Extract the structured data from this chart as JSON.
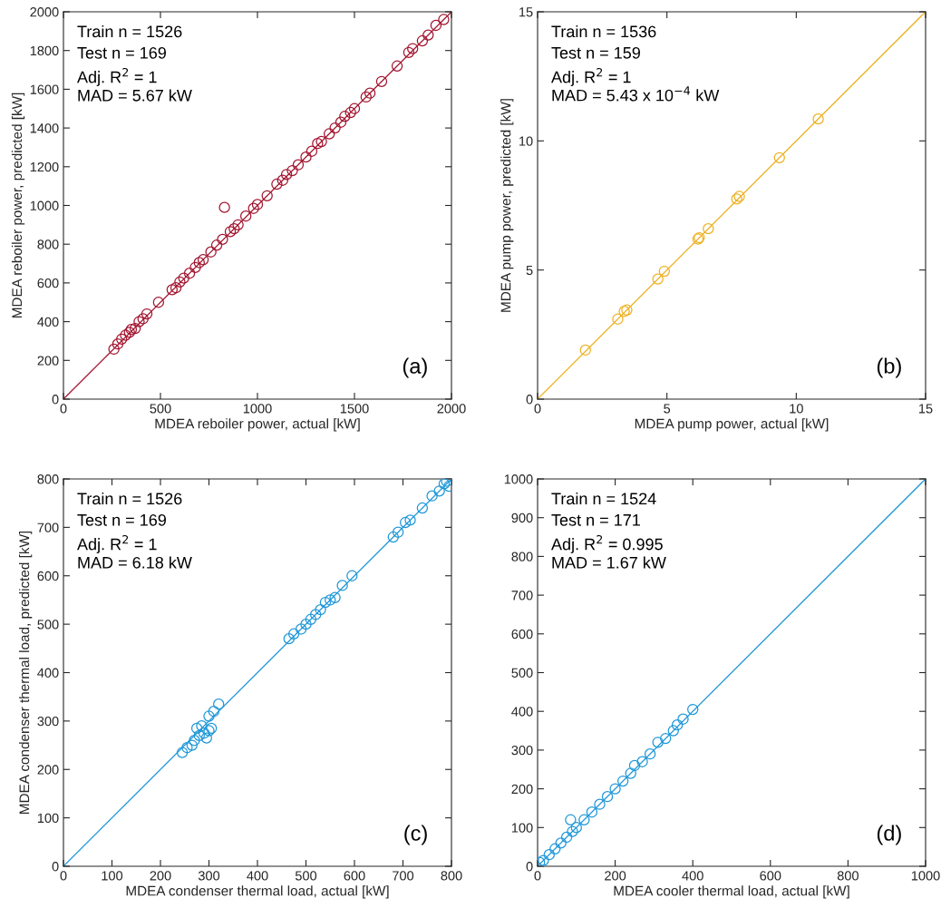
{
  "chart_data": [
    {
      "type": "scatter",
      "xlabel": "MDEA reboiler power, actual [kW]",
      "ylabel": "MDEA reboiler power, predicted [kW]",
      "annotations": [
        "Train n = 1526",
        "Test n = 169",
        "Adj. R$^{2}$ = 1",
        "MAD = 5.67 kW",
        "(a)"
      ],
      "xlim": [
        0,
        2000
      ],
      "ylim": [
        0,
        2000
      ],
      "xticks": [
        0,
        500,
        1000,
        1500,
        2000
      ],
      "yticks": [
        0,
        200,
        400,
        600,
        800,
        1000,
        1200,
        1400,
        1600,
        1800,
        2000
      ],
      "grid": false,
      "legend": false,
      "series": [
        {
          "marker": "circle",
          "color": "#a2142f",
          "x": [
            260,
            280,
            300,
            320,
            340,
            350,
            370,
            390,
            410,
            430,
            490,
            560,
            580,
            600,
            620,
            650,
            680,
            700,
            720,
            760,
            790,
            820,
            830,
            860,
            880,
            900,
            940,
            980,
            1000,
            1050,
            1100,
            1130,
            1150,
            1180,
            1210,
            1250,
            1280,
            1310,
            1330,
            1370,
            1400,
            1430,
            1450,
            1480,
            1500,
            1560,
            1580,
            1640,
            1720,
            1780,
            1800,
            1850,
            1880,
            1920,
            1960
          ],
          "values": [
            258,
            285,
            310,
            330,
            345,
            360,
            365,
            400,
            415,
            440,
            500,
            565,
            575,
            605,
            625,
            650,
            680,
            705,
            720,
            760,
            795,
            825,
            990,
            865,
            880,
            900,
            945,
            985,
            1005,
            1050,
            1110,
            1130,
            1160,
            1180,
            1210,
            1250,
            1280,
            1320,
            1330,
            1370,
            1400,
            1430,
            1460,
            1480,
            1500,
            1560,
            1580,
            1640,
            1720,
            1790,
            1810,
            1850,
            1880,
            1930,
            1960
          ]
        },
        {
          "type": "line",
          "line_style": "solid",
          "color": "#a2142f",
          "x": [
            0,
            2000
          ],
          "values": [
            0,
            2000
          ]
        }
      ]
    },
    {
      "type": "scatter",
      "xlabel": "MDEA pump power, actual [kW]",
      "ylabel": "MDEA pump power, predicted [kW]",
      "annotations": [
        "Train n = 1536",
        "Test n = 159",
        "Adj. R$^{2}$ = 1",
        "MAD = 5.43 x 10$^{−4}$ kW",
        "(b)"
      ],
      "xlim": [
        0,
        15
      ],
      "ylim": [
        0,
        15
      ],
      "xticks": [
        0,
        5,
        10,
        15
      ],
      "yticks": [
        0,
        5,
        10,
        15
      ],
      "grid": false,
      "legend": false,
      "series": [
        {
          "marker": "circle",
          "color": "#edb120",
          "x": [
            1.85,
            3.1,
            3.35,
            3.45,
            4.65,
            4.9,
            6.2,
            6.25,
            6.6,
            7.7,
            7.8,
            9.35,
            10.85
          ],
          "values": [
            1.9,
            3.1,
            3.4,
            3.45,
            4.65,
            4.95,
            6.2,
            6.25,
            6.6,
            7.75,
            7.85,
            9.35,
            10.85
          ]
        },
        {
          "type": "line",
          "line_style": "solid",
          "color": "#edb120",
          "x": [
            0,
            15
          ],
          "values": [
            0,
            15
          ]
        }
      ]
    },
    {
      "type": "scatter",
      "xlabel": "MDEA condenser thermal load, actual [kW]",
      "ylabel": "MDEA condenser thermal load, predicted [kW]",
      "annotations": [
        "Train n = 1526",
        "Test n = 169",
        "Adj. R$^{2}$ = 1",
        "MAD = 6.18 kW",
        "(c)"
      ],
      "xlim": [
        0,
        800
      ],
      "ylim": [
        0,
        800
      ],
      "xticks": [
        0,
        100,
        200,
        300,
        400,
        500,
        600,
        700,
        800
      ],
      "yticks": [
        0,
        100,
        200,
        300,
        400,
        500,
        600,
        700,
        800
      ],
      "grid": false,
      "legend": false,
      "series": [
        {
          "marker": "circle",
          "color": "#1e97d8",
          "x": [
            245,
            255,
            265,
            270,
            275,
            280,
            285,
            290,
            295,
            300,
            300,
            305,
            310,
            320,
            465,
            475,
            490,
            500,
            510,
            520,
            530,
            540,
            550,
            560,
            575,
            595,
            680,
            690,
            705,
            715,
            740,
            760,
            775,
            785,
            790,
            795
          ],
          "values": [
            235,
            245,
            250,
            260,
            285,
            270,
            290,
            275,
            265,
            280,
            310,
            285,
            320,
            335,
            470,
            480,
            490,
            500,
            510,
            520,
            530,
            545,
            550,
            555,
            580,
            600,
            680,
            690,
            710,
            715,
            740,
            765,
            775,
            790,
            795,
            785
          ]
        },
        {
          "type": "line",
          "line_style": "solid",
          "color": "#1e97d8",
          "x": [
            0,
            800
          ],
          "values": [
            0,
            800
          ]
        }
      ]
    },
    {
      "type": "scatter",
      "xlabel": "MDEA cooler thermal load, actual [kW]",
      "annotations": [
        "Train n = 1524",
        "Test n = 171",
        "Adj. R$^{2}$ = 0.995",
        "MAD = 1.67 kW",
        "(d)"
      ],
      "xlim": [
        0,
        1000
      ],
      "ylim": [
        0,
        1000
      ],
      "xticks": [
        0,
        200,
        400,
        600,
        800,
        1000
      ],
      "yticks": [
        0,
        100,
        200,
        300,
        400,
        500,
        600,
        700,
        800,
        900,
        1000
      ],
      "grid": false,
      "legend": false,
      "series": [
        {
          "marker": "circle",
          "color": "#1e97d8",
          "x": [
            5,
            15,
            30,
            45,
            60,
            75,
            85,
            90,
            100,
            120,
            140,
            160,
            180,
            200,
            220,
            240,
            250,
            270,
            290,
            310,
            330,
            350,
            360,
            375,
            400
          ],
          "values": [
            10,
            15,
            30,
            45,
            60,
            75,
            120,
            90,
            100,
            120,
            140,
            160,
            180,
            200,
            220,
            240,
            260,
            270,
            290,
            320,
            330,
            350,
            365,
            380,
            405
          ]
        },
        {
          "type": "line",
          "line_style": "solid",
          "color": "#1e97d8",
          "x": [
            0,
            1000
          ],
          "values": [
            0,
            1000
          ]
        }
      ]
    }
  ]
}
